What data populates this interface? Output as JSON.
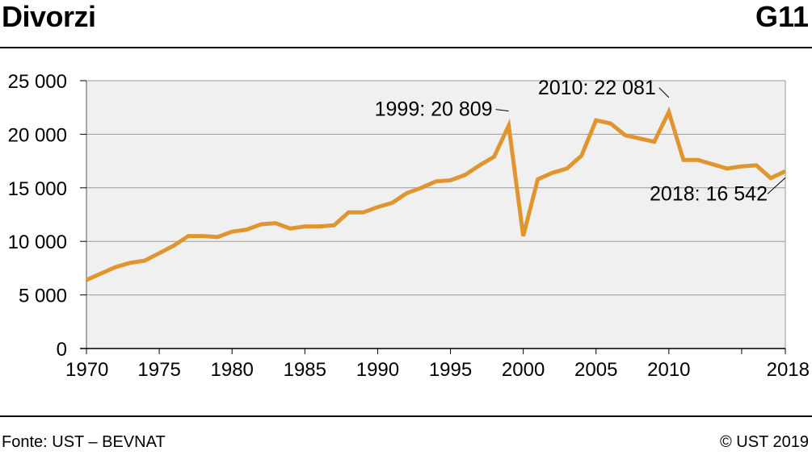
{
  "header": {
    "title": "Divorzi",
    "code": "G11"
  },
  "footer": {
    "source": "Fonte: UST – BEVNAT",
    "copyright": "© UST 2019"
  },
  "colors": {
    "line": "#e0952f",
    "plot_bg": "#f0f0f0",
    "grid": "#9a9a9a"
  },
  "chart_data": {
    "type": "line",
    "title": "Divorzi",
    "xlabel": "",
    "ylabel": "",
    "xlim": [
      1970,
      2018
    ],
    "ylim": [
      0,
      25000
    ],
    "grid": true,
    "yticks": [
      0,
      5000,
      10000,
      15000,
      20000,
      25000
    ],
    "ytick_labels": [
      "0",
      "5 000",
      "10 000",
      "15 000",
      "20 000",
      "25 000"
    ],
    "xticks": [
      1970,
      1975,
      1980,
      1985,
      1990,
      1995,
      2000,
      2005,
      2010,
      2018
    ],
    "xtick_labels": [
      "1970",
      "1975",
      "1980",
      "1985",
      "1990",
      "1995",
      "2000",
      "2005",
      "2010",
      "2018"
    ],
    "series": [
      {
        "x": [
          1970,
          1971,
          1972,
          1973,
          1974,
          1975,
          1976,
          1977,
          1978,
          1979,
          1980,
          1981,
          1982,
          1983,
          1984,
          1985,
          1986,
          1987,
          1988,
          1989,
          1990,
          1991,
          1992,
          1993,
          1994,
          1995,
          1996,
          1997,
          1998,
          1999,
          2000,
          2001,
          2002,
          2003,
          2004,
          2005,
          2006,
          2007,
          2008,
          2009,
          2010,
          2011,
          2012,
          2013,
          2014,
          2015,
          2016,
          2017,
          2018
        ],
        "values": [
          6400,
          7000,
          7600,
          8000,
          8200,
          8900,
          9600,
          10500,
          10500,
          10400,
          10900,
          11100,
          11600,
          11700,
          11200,
          11400,
          11400,
          11500,
          12700,
          12700,
          13200,
          13600,
          14500,
          15000,
          15600,
          15700,
          16200,
          17100,
          17900,
          20809,
          10500,
          15800,
          16400,
          16800,
          18000,
          21300,
          21000,
          19900,
          19600,
          19300,
          22081,
          17600,
          17600,
          17200,
          16800,
          17000,
          17100,
          15900,
          16542
        ]
      }
    ],
    "annotations": [
      {
        "text": "1999: 20 809",
        "x": 1999,
        "y": 20809
      },
      {
        "text": "2010: 22 081",
        "x": 2010,
        "y": 22081
      },
      {
        "text": "2018: 16 542",
        "x": 2018,
        "y": 16542
      }
    ]
  }
}
